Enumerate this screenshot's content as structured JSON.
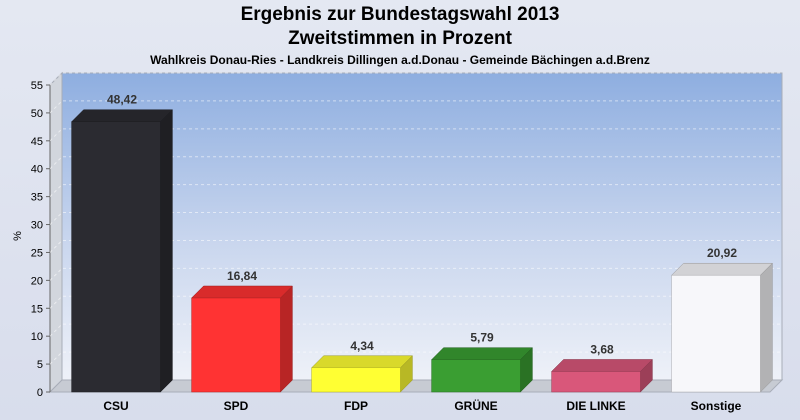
{
  "header": {
    "title_line1": "Ergebnis zur Bundestagswahl 2013",
    "title_line2": "Zweitstimmen in Prozent",
    "subtitle": "Wahlkreis Donau-Ries - Landkreis Dillingen a.d.Donau - Gemeinde Bächingen a.d.Brenz"
  },
  "chart_data": {
    "type": "bar",
    "title": "Ergebnis zur Bundestagswahl 2013 Zweitstimmen in Prozent",
    "subtitle": "Wahlkreis Donau-Ries - Landkreis Dillingen a.d.Donau - Gemeinde Bächingen a.d.Brenz",
    "xlabel": "",
    "ylabel": "%",
    "ylim": [
      0,
      55
    ],
    "yticks": [
      0,
      5,
      10,
      15,
      20,
      25,
      30,
      35,
      40,
      45,
      50,
      55
    ],
    "categories": [
      "CSU",
      "SPD",
      "FDP",
      "GRÜNE",
      "DIE LINKE",
      "Sonstige"
    ],
    "values": [
      48.42,
      16.84,
      4.34,
      5.79,
      3.68,
      20.92
    ],
    "value_labels": [
      "48,42",
      "16,84",
      "4,34",
      "5,79",
      "3,68",
      "20,92"
    ],
    "colors": [
      "#2b2b31",
      "#ff3333",
      "#ffff33",
      "#3a9e32",
      "#d9577a",
      "#f7f7fa"
    ],
    "grid": true,
    "legend": "none"
  }
}
